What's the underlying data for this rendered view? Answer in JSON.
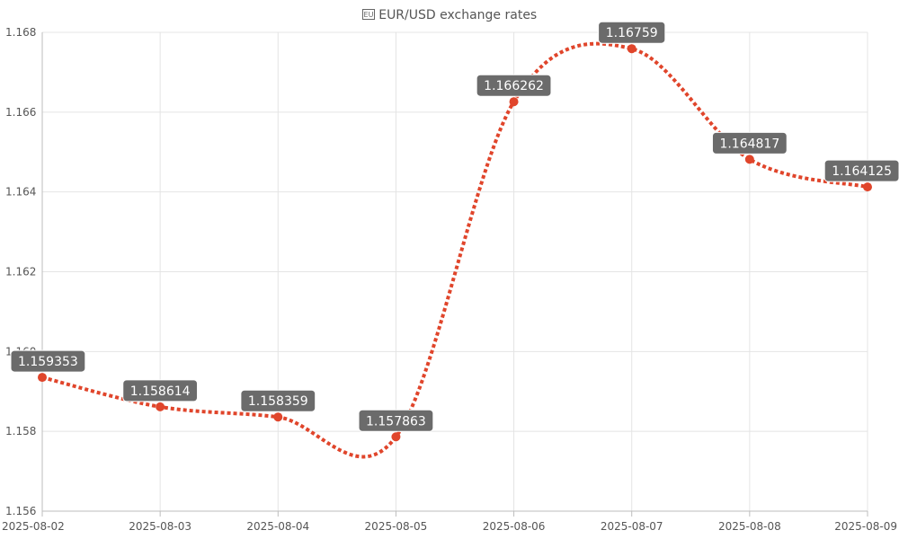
{
  "chart_data": {
    "type": "line",
    "title": "🇪🇺 EUR/USD 🇺🇸 exchange rates",
    "title_display": "EUR/USD exchange rates",
    "xlabel": "",
    "ylabel": "",
    "categories": [
      "2025-08-02",
      "2025-08-03",
      "2025-08-04",
      "2025-08-05",
      "2025-08-06",
      "2025-08-07",
      "2025-08-08",
      "2025-08-09"
    ],
    "series": [
      {
        "values": [
          1.159353,
          1.158614,
          1.158359,
          1.157863,
          1.166262,
          1.16759,
          1.164817,
          1.164125
        ]
      }
    ],
    "data_labels": [
      "1.159353",
      "1.158614",
      "1.158359",
      "1.157863",
      "1.166262",
      "1.16759",
      "1.164817",
      "1.164125"
    ],
    "y_ticks": [
      "1.156",
      "1.158",
      "1.160",
      "1.162",
      "1.164",
      "1.166",
      "1.168"
    ],
    "ylim": [
      1.156,
      1.168
    ],
    "grid": true,
    "line_style": "dotted",
    "colors": {
      "line": "#e0452b",
      "point": "#e0452b",
      "label_bg": "#6b6b6b",
      "label_text": "#ffffff",
      "grid": "#e4e4e4",
      "axis": "#bdbdbd"
    }
  }
}
